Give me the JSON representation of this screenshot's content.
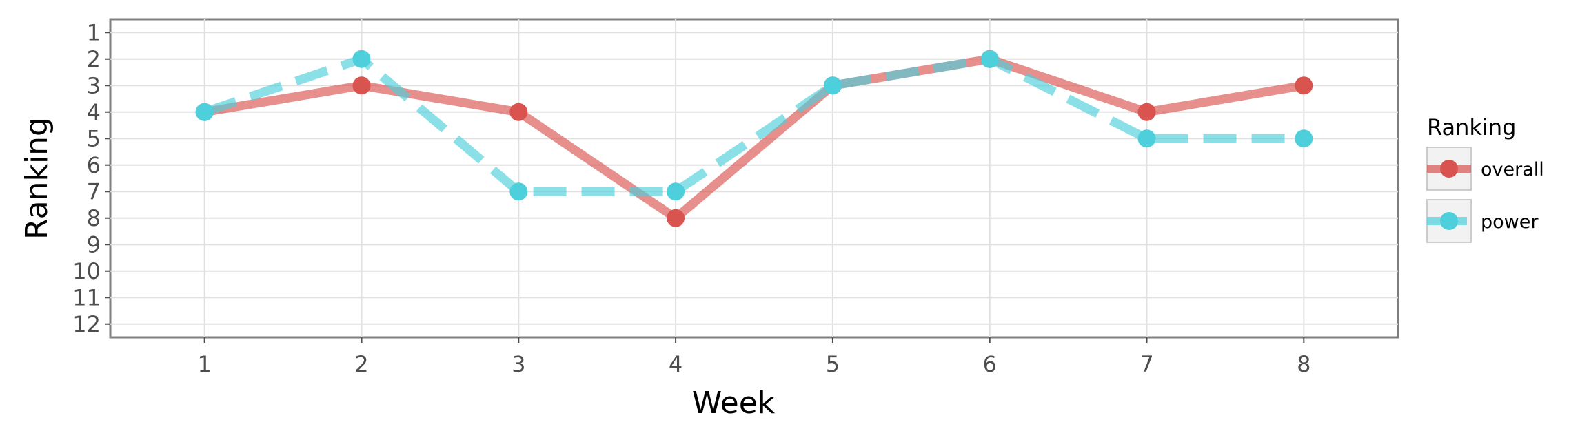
{
  "chart_data": {
    "type": "line",
    "title": "",
    "xlabel": "Week",
    "ylabel": "Ranking",
    "x": [
      1,
      2,
      3,
      4,
      5,
      6,
      7,
      8
    ],
    "x_ticks": [
      "1",
      "2",
      "3",
      "4",
      "5",
      "6",
      "7",
      "8"
    ],
    "y_ticks": [
      "1",
      "2",
      "3",
      "4",
      "5",
      "6",
      "7",
      "8",
      "9",
      "10",
      "11",
      "12"
    ],
    "y_reversed": true,
    "xlim": [
      0.4,
      8.6
    ],
    "ylim": [
      1,
      12
    ],
    "grid": true,
    "legend": {
      "title": "Ranking",
      "position": "right"
    },
    "series": [
      {
        "name": "overall",
        "color": "#d9534f",
        "line_style": "solid",
        "values": [
          4,
          3,
          4,
          8,
          3,
          2,
          4,
          3
        ]
      },
      {
        "name": "power",
        "color": "#4dd0dc",
        "line_style": "dashed",
        "values": [
          4,
          2,
          7,
          7,
          3,
          2,
          5,
          5
        ]
      }
    ]
  }
}
